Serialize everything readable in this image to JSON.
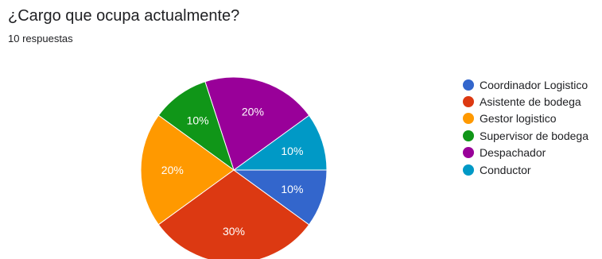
{
  "header": {
    "title": "¿Cargo que ocupa actualmente?",
    "responses": "10 respuestas"
  },
  "chart_data": {
    "type": "pie",
    "categories": [
      "Coordinador Logistico",
      "Asistente de bodega",
      "Gestor logistico",
      "Supervisor de bodega",
      "Despachador",
      "Conductor"
    ],
    "values": [
      10,
      30,
      20,
      10,
      20,
      10
    ],
    "colors": [
      "#3366cc",
      "#dc3912",
      "#ff9900",
      "#109618",
      "#990099",
      "#0099c6"
    ],
    "slice_order": [
      "Conductor",
      "Despachador",
      "Supervisor de bodega",
      "Gestor logistico",
      "Asistente de bodega",
      "Coordinador Logistico"
    ],
    "label_format": "percent",
    "legend_position": "right"
  }
}
